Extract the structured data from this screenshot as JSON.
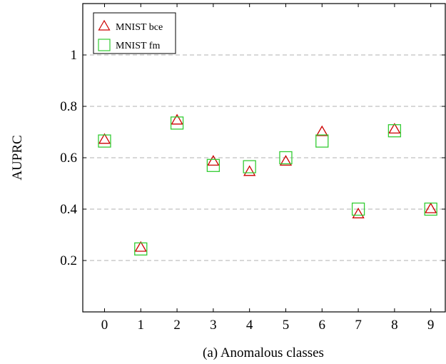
{
  "chart_data": {
    "type": "scatter",
    "caption": "(a) Anomalous classes",
    "xlabel": "",
    "ylabel": "AUPRC",
    "categories": [
      "0",
      "1",
      "2",
      "3",
      "4",
      "5",
      "6",
      "7",
      "8",
      "9"
    ],
    "yticks": [
      "0.2",
      "0.4",
      "0.6",
      "0.8",
      "1"
    ],
    "ytick_values": [
      0.2,
      0.4,
      0.6,
      0.8,
      1.0
    ],
    "xlim": [
      -0.6,
      9.4
    ],
    "ylim": [
      0.0,
      1.2
    ],
    "grid": "horizontal-dashed",
    "legend_position": "top-left",
    "series": [
      {
        "name": "MNIST bce",
        "marker": "triangle",
        "color": "#cc0000",
        "values": [
          0.67,
          0.25,
          0.745,
          0.585,
          0.545,
          0.585,
          0.7,
          0.38,
          0.71,
          0.4
        ]
      },
      {
        "name": "MNIST fm",
        "marker": "square",
        "color": "#33cc33",
        "values": [
          0.665,
          0.245,
          0.735,
          0.57,
          0.565,
          0.6,
          0.665,
          0.4,
          0.705,
          0.4
        ]
      }
    ]
  }
}
